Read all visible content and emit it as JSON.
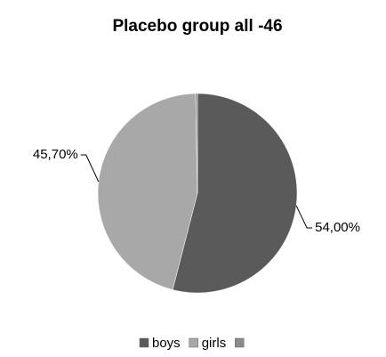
{
  "chart_data": {
    "type": "pie",
    "title": "Placebo group all -46",
    "categories": [
      "boys",
      "girls",
      null
    ],
    "values": [
      54.0,
      45.7,
      0.3
    ],
    "value_labels": [
      "54,00%",
      "45,70%",
      null
    ],
    "colors": [
      "#5a5a5a",
      "#a8a8a8",
      "#8a8a8a"
    ],
    "legend": "bottom"
  }
}
